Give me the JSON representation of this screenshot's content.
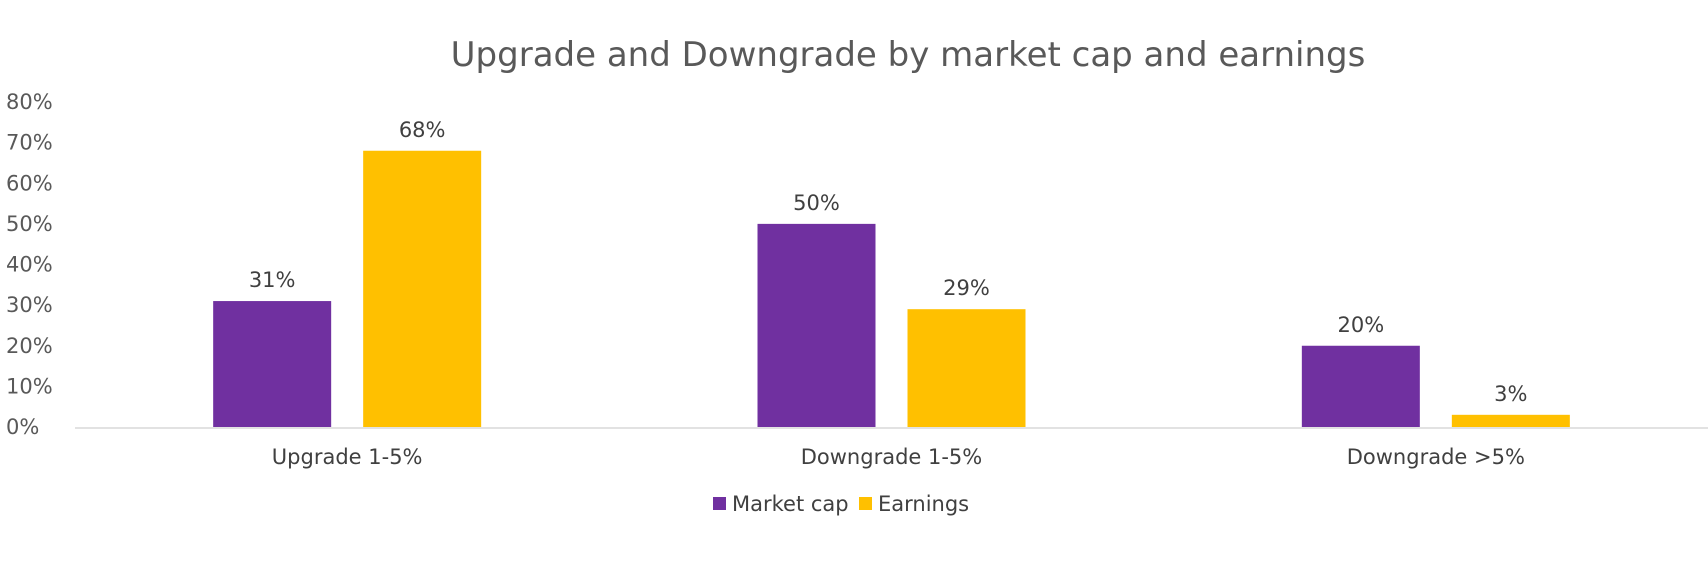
{
  "chart_data": {
    "type": "bar",
    "title": "Upgrade and Downgrade by market cap and earnings",
    "categories": [
      "Upgrade 1-5%",
      "Downgrade 1-5%",
      "Downgrade >5%"
    ],
    "series": [
      {
        "name": "Market cap",
        "values": [
          31,
          50,
          20
        ],
        "labels": [
          "31%",
          "50%",
          "20%"
        ],
        "color": "#7030A0"
      },
      {
        "name": "Earnings",
        "values": [
          68,
          29,
          3
        ],
        "labels": [
          "68%",
          "29%",
          "3%"
        ],
        "color": "#FFC000"
      }
    ],
    "ylim": [
      0,
      80
    ],
    "yticks": [
      0,
      10,
      20,
      30,
      40,
      50,
      60,
      70,
      80
    ],
    "ytick_labels": [
      "0%",
      "10%",
      "20%",
      "30%",
      "40%",
      "50%",
      "60%",
      "70%",
      "80%"
    ],
    "xlabel": "",
    "ylabel": "",
    "grid": false,
    "legend_position": "bottom"
  }
}
